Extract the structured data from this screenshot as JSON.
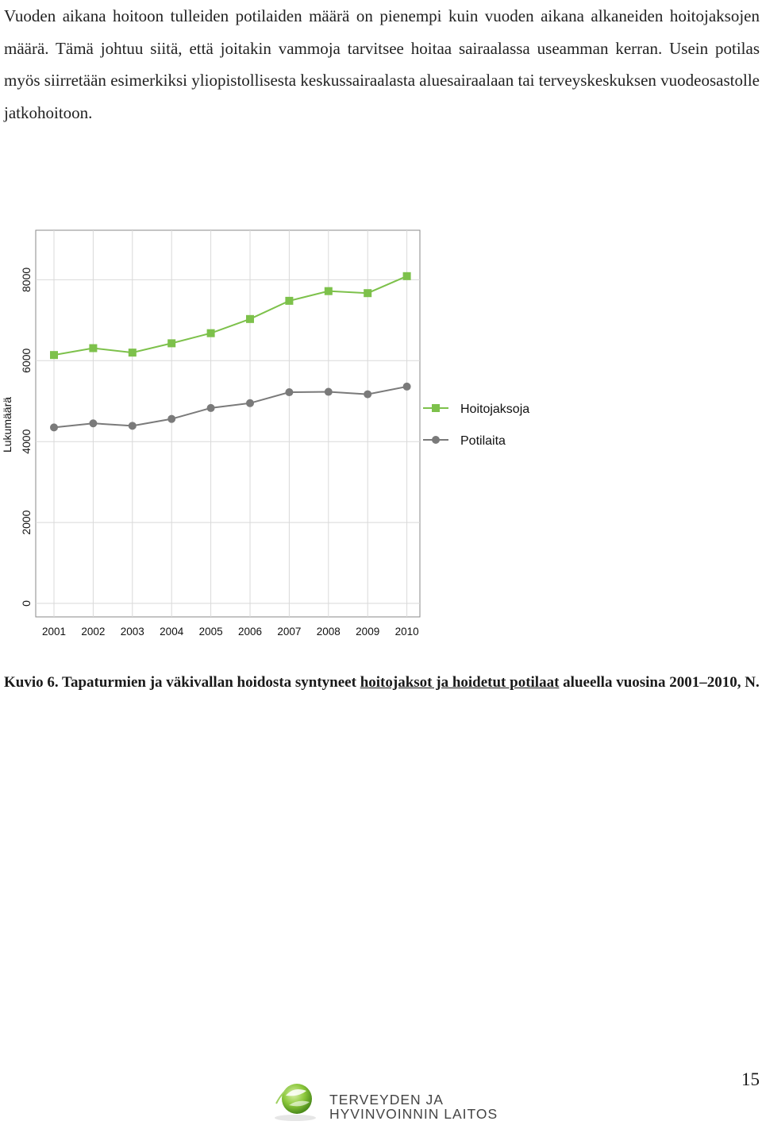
{
  "intro_text": "Vuoden aikana hoitoon tulleiden potilaiden määrä on pienempi kuin vuoden aikana alkaneiden hoitojaksojen määrä. Tämä johtuu siitä, että joitakin vammoja tarvitsee hoitaa sairaalassa useamman kerran. Usein potilas myös siirretään esimerkiksi yliopistollisesta keskussairaalasta aluesairaalaan tai terveyskeskuksen vuodeosastolle jatkohoitoon.",
  "caption": {
    "part1": "Kuvio 6. Tapaturmien ja väkivallan hoidosta syntyneet ",
    "underlined": "hoitojaksot ja hoidetut potilaat",
    "part2": " alueella vuosina 2001–2010, N."
  },
  "page_number": "15",
  "logo": {
    "line1": "TERVEYDEN JA",
    "line2": "HYVINVOINNIN LAITOS"
  },
  "colors": {
    "hoitojaksoja": "#7dc14b",
    "potilaita": "#7a7a7a",
    "grid": "#d9d9d9"
  },
  "chart_data": {
    "type": "line",
    "title": "",
    "xlabel": "",
    "ylabel": "Lukumäärä",
    "x": [
      "2001",
      "2002",
      "2003",
      "2004",
      "2005",
      "2006",
      "2007",
      "2008",
      "2009",
      "2010"
    ],
    "y_ticks": [
      "0",
      "2000",
      "4000",
      "6000",
      "8000"
    ],
    "ylim": [
      0,
      9200
    ],
    "grid": true,
    "legend_position": "right",
    "series": [
      {
        "name": "Hoitojaksoja",
        "marker": "square",
        "values": [
          6140,
          6310,
          6200,
          6430,
          6680,
          7030,
          7480,
          7720,
          7670,
          8090
        ]
      },
      {
        "name": "Potilaita",
        "marker": "circle",
        "values": [
          4350,
          4450,
          4390,
          4560,
          4830,
          4950,
          5220,
          5230,
          5170,
          5360
        ]
      }
    ]
  }
}
